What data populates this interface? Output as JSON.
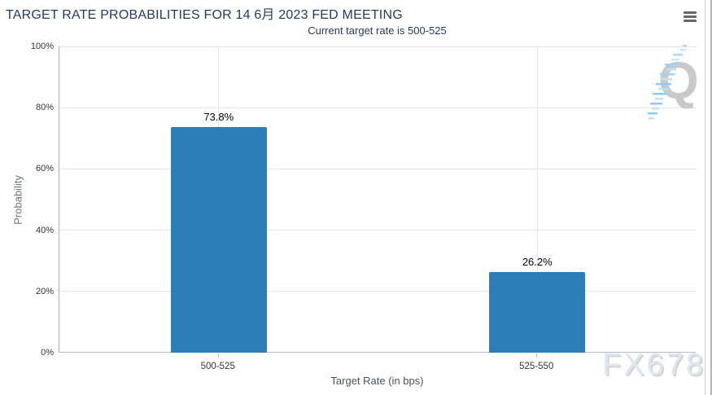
{
  "chart_data": {
    "type": "bar",
    "title": "TARGET RATE PROBABILITIES FOR 14 6月 2023 FED MEETING",
    "subtitle": "Current target rate is 500-525",
    "categories": [
      "500-525",
      "525-550"
    ],
    "values": [
      73.8,
      26.2
    ],
    "data_labels": [
      "73.8%",
      "26.2%"
    ],
    "xlabel": "Target Rate (in bps)",
    "ylabel": "Probability",
    "ylim": [
      0,
      100
    ],
    "ytick_step": 20,
    "ytick_labels": [
      "0%",
      "20%",
      "40%",
      "60%",
      "80%",
      "100%"
    ],
    "grid": true,
    "legend": false,
    "bar_color": "#2b7eb8"
  },
  "toolbar": {
    "menu_icon": "hamburger-menu-icon"
  },
  "watermarks": {
    "logo_letter": "Q",
    "brand": "FX678"
  },
  "colors": {
    "title": "#253a63",
    "bar": "#2b7eb8",
    "gridline": "#e6e6e6",
    "axis_line": "#b3bac0",
    "tick_label": "#333333",
    "data_label": "#000000",
    "y_axis_title": "#707579",
    "x_axis_title": "#49545e",
    "menu_icon": "#666666",
    "watermark_q": "#c9c9c9",
    "watermark_dashes": "#a5d5f3",
    "watermark_brand": "#dde8f3"
  }
}
